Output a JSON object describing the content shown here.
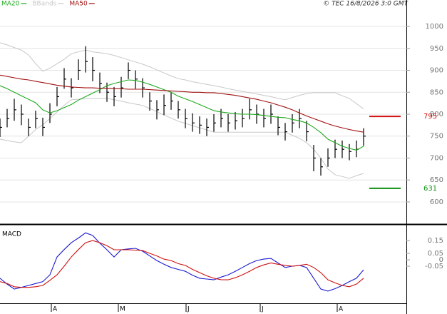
{
  "chart_data": [
    {
      "type": "ohlc",
      "copyright": "© TEC 16/8/2026 3:0 GMT",
      "x": [
        0,
        1,
        2,
        3,
        4,
        5,
        6,
        7,
        8,
        9,
        10,
        11,
        12,
        13,
        14,
        15,
        16,
        17,
        18,
        19,
        20,
        21,
        22,
        23,
        24,
        25,
        26,
        27,
        28,
        29,
        30,
        31,
        32,
        33,
        34,
        35,
        36,
        37,
        38,
        39,
        40,
        41,
        42,
        43,
        44,
        45,
        46,
        47,
        48,
        49,
        50,
        51
      ],
      "xlim": [
        0,
        57
      ],
      "high": [
        790,
        812,
        835,
        822,
        790,
        808,
        792,
        825,
        862,
        905,
        882,
        925,
        955,
        930,
        895,
        872,
        862,
        885,
        918,
        900,
        882,
        850,
        832,
        845,
        850,
        830,
        812,
        802,
        795,
        790,
        800,
        812,
        800,
        805,
        812,
        835,
        822,
        812,
        822,
        795,
        780,
        800,
        812,
        785,
        730,
        700,
        722,
        742,
        740,
        732,
        740,
        768
      ],
      "low": [
        748,
        770,
        785,
        775,
        750,
        768,
        750,
        780,
        818,
        858,
        838,
        878,
        895,
        875,
        848,
        828,
        818,
        838,
        880,
        858,
        838,
        808,
        788,
        798,
        810,
        790,
        768,
        760,
        755,
        750,
        760,
        770,
        760,
        765,
        770,
        788,
        778,
        770,
        778,
        752,
        740,
        758,
        768,
        738,
        670,
        660,
        680,
        700,
        700,
        695,
        702,
        728
      ],
      "close": [
        770,
        790,
        810,
        800,
        770,
        790,
        770,
        800,
        840,
        880,
        860,
        900,
        920,
        900,
        870,
        850,
        840,
        860,
        900,
        880,
        860,
        830,
        810,
        820,
        830,
        810,
        790,
        780,
        775,
        770,
        780,
        790,
        780,
        785,
        790,
        810,
        800,
        790,
        800,
        770,
        760,
        780,
        790,
        760,
        700,
        680,
        700,
        720,
        720,
        715,
        720,
        750
      ],
      "bar_color": "#000000",
      "series": [
        {
          "name": "MA20",
          "color": "#1fa81f",
          "values": [
            865,
            858,
            850,
            842,
            834,
            826,
            810,
            803,
            808,
            815,
            822,
            832,
            840,
            848,
            856,
            865,
            870,
            874,
            878,
            877,
            873,
            868,
            862,
            856,
            850,
            841,
            835,
            829,
            822,
            815,
            808,
            805,
            803,
            801,
            800,
            800,
            799,
            797,
            795,
            793,
            792,
            788,
            785,
            780,
            770,
            758,
            743,
            735,
            727,
            722,
            718,
            727
          ]
        },
        {
          "name": "BBands",
          "color": "#c8c8c8",
          "upper": [
            963,
            958,
            952,
            946,
            935,
            915,
            898,
            905,
            915,
            925,
            938,
            942,
            946,
            942,
            940,
            938,
            934,
            929,
            924,
            919,
            914,
            908,
            901,
            894,
            887,
            881,
            878,
            874,
            871,
            868,
            865,
            862,
            858,
            855,
            852,
            849,
            846,
            843,
            840,
            836,
            833,
            838,
            843,
            847,
            849,
            849,
            849,
            849,
            842,
            836,
            824,
            812
          ],
          "lower": [
            743,
            740,
            737,
            735,
            750,
            765,
            776,
            790,
            805,
            820,
            833,
            834,
            835,
            836,
            836,
            836,
            833,
            830,
            826,
            823,
            820,
            813,
            806,
            798,
            791,
            784,
            779,
            774,
            769,
            764,
            759,
            759,
            759,
            759,
            759,
            759,
            759,
            759,
            759,
            759,
            759,
            752,
            745,
            735,
            720,
            700,
            675,
            662,
            658,
            654,
            660,
            665
          ]
        },
        {
          "name": "MA50",
          "color": "#a01010",
          "values": [
            889,
            886,
            883,
            880,
            878,
            875,
            872,
            869,
            866,
            864,
            862,
            861,
            860,
            860,
            859,
            859,
            858,
            858,
            857,
            857,
            857,
            856,
            855,
            854,
            853,
            852,
            851,
            850,
            850,
            849,
            849,
            847,
            845,
            843,
            840,
            837,
            834,
            830,
            826,
            821,
            816,
            810,
            803,
            796,
            790,
            784,
            778,
            773,
            769,
            765,
            762,
            759
          ]
        }
      ],
      "levels": [
        {
          "value": 795,
          "color": "#d01010"
        },
        {
          "value": 631,
          "color": "#109010"
        }
      ],
      "ylim": [
        556,
        1044
      ],
      "yticks": [
        1000,
        950,
        900,
        850,
        800,
        750,
        700,
        650,
        600
      ],
      "grid": true
    },
    {
      "type": "line",
      "title": "MACD",
      "x": [
        0,
        1,
        2,
        3,
        4,
        5,
        6,
        7,
        8,
        9,
        10,
        11,
        12,
        13,
        14,
        15,
        16,
        17,
        18,
        19,
        20,
        21,
        22,
        23,
        24,
        25,
        26,
        27,
        28,
        29,
        30,
        31,
        32,
        33,
        34,
        35,
        36,
        37,
        38,
        39,
        40,
        41,
        42,
        43,
        44,
        45,
        46,
        47,
        48,
        49,
        50,
        51
      ],
      "xlim": [
        0,
        57
      ],
      "xticks": [
        {
          "value": 7.2,
          "label": "A"
        },
        {
          "value": 16.6,
          "label": "M"
        },
        {
          "value": 26.1,
          "label": "J"
        },
        {
          "value": 36.5,
          "label": "J"
        },
        {
          "value": 47.3,
          "label": "A"
        }
      ],
      "series": [
        {
          "name": "MACD",
          "color": "#1a1ad0",
          "values": [
            -0.144,
            -0.19,
            -0.228,
            -0.215,
            -0.2,
            -0.185,
            -0.17,
            -0.117,
            0.022,
            0.08,
            0.133,
            0.17,
            0.21,
            0.19,
            0.13,
            0.078,
            0.022,
            0.078,
            0.085,
            0.089,
            0.067,
            0.03,
            -0.006,
            -0.035,
            -0.06,
            -0.075,
            -0.09,
            -0.12,
            -0.144,
            -0.15,
            -0.156,
            -0.135,
            -0.117,
            -0.09,
            -0.06,
            -0.03,
            -0.006,
            0.005,
            0.011,
            -0.025,
            -0.06,
            -0.05,
            -0.044,
            -0.06,
            -0.144,
            -0.228,
            -0.244,
            -0.225,
            -0.2,
            -0.17,
            -0.144,
            -0.078
          ]
        },
        {
          "color": "#d01010",
          "values": [
            -0.17,
            -0.185,
            -0.21,
            -0.215,
            -0.215,
            -0.21,
            -0.2,
            -0.16,
            -0.117,
            -0.05,
            0.022,
            0.08,
            0.133,
            0.15,
            0.133,
            0.11,
            0.078,
            0.078,
            0.078,
            0.075,
            0.072,
            0.05,
            0.03,
            0.005,
            -0.006,
            -0.03,
            -0.044,
            -0.075,
            -0.1,
            -0.125,
            -0.144,
            -0.155,
            -0.156,
            -0.14,
            -0.117,
            -0.09,
            -0.06,
            -0.04,
            -0.025,
            -0.035,
            -0.044,
            -0.05,
            -0.044,
            -0.035,
            -0.06,
            -0.1,
            -0.156,
            -0.18,
            -0.2,
            -0.21,
            -0.19,
            -0.144
          ]
        }
      ],
      "ylim": [
        -0.339,
        0.256
      ],
      "yticks": [
        0.15,
        0.05,
        0,
        -0.05
      ]
    }
  ]
}
